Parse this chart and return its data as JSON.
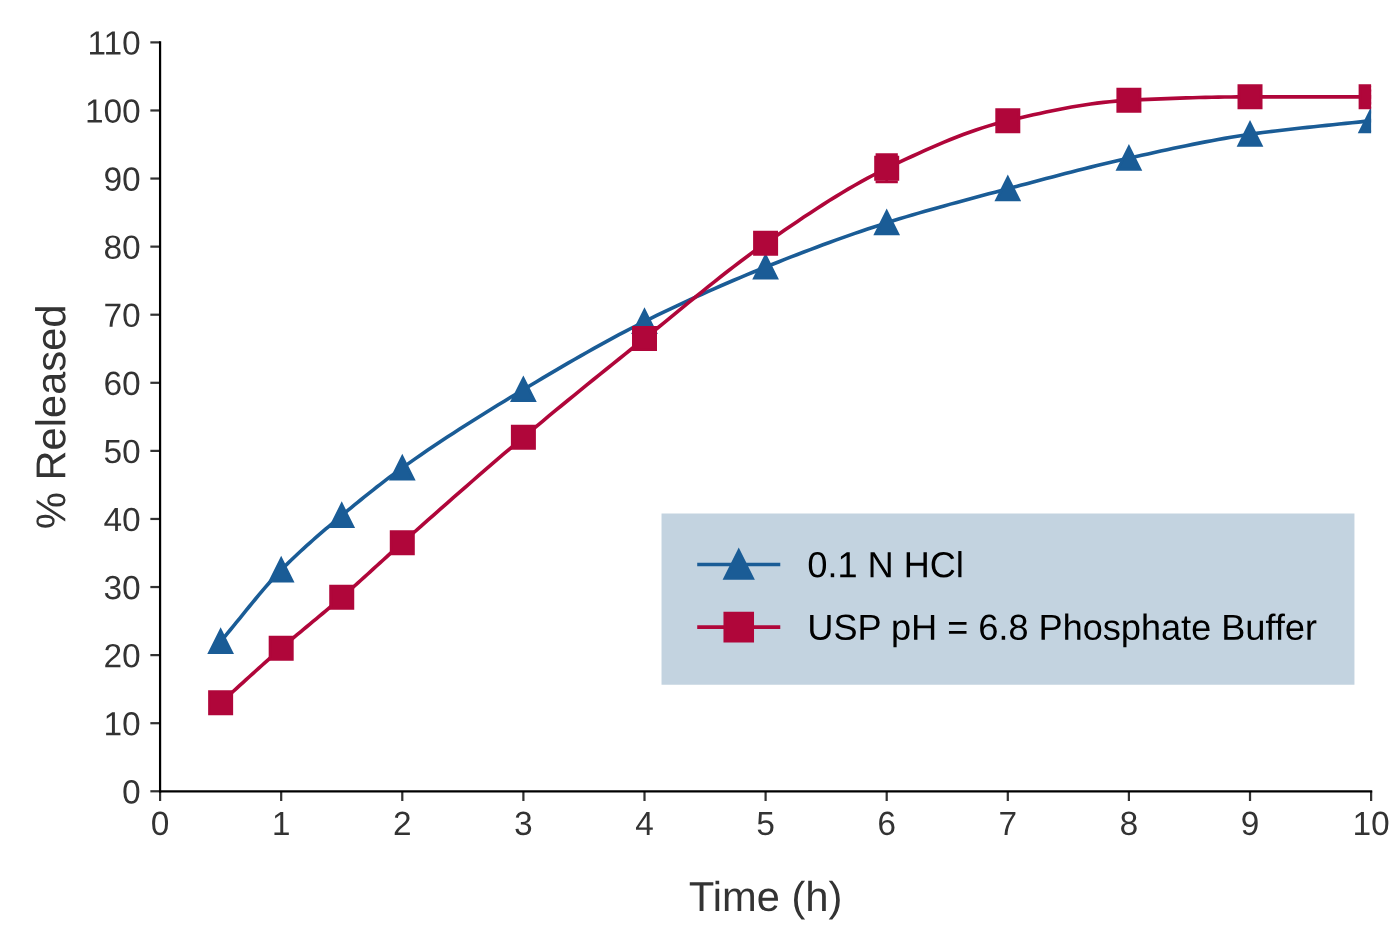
{
  "chart_data": {
    "type": "line",
    "xlabel": "Time (h)",
    "ylabel": "% Released",
    "x": [
      0.5,
      1,
      1.5,
      2,
      3,
      4,
      5,
      6,
      7,
      8,
      9,
      10
    ],
    "series": [
      {
        "name": "0.1 N HCl",
        "color": "#1a5c96",
        "marker": "triangle",
        "values": [
          22,
          32.5,
          40.5,
          47.5,
          59,
          69,
          77,
          83.5,
          88.5,
          93,
          96.5,
          98.5
        ]
      },
      {
        "name": "USP pH = 6.8 Phosphate Buffer",
        "color": "#b0063a",
        "marker": "square",
        "values": [
          13,
          21,
          28.5,
          36.5,
          52,
          66.5,
          80.5,
          91.5,
          98.5,
          101.5,
          102,
          102
        ],
        "errors": [
          1,
          1,
          1,
          1,
          1.5,
          1.5,
          1.5,
          2,
          1.5,
          1,
          1,
          1
        ]
      }
    ],
    "xlim": [
      0,
      10
    ],
    "ylim": [
      0,
      110
    ],
    "xticks": [
      0,
      1,
      2,
      3,
      4,
      5,
      6,
      7,
      8,
      9,
      10
    ],
    "yticks": [
      0,
      10,
      20,
      30,
      40,
      50,
      60,
      70,
      80,
      90,
      100,
      110
    ],
    "grid": false,
    "legend": "bottom right",
    "line_style": "solid"
  }
}
